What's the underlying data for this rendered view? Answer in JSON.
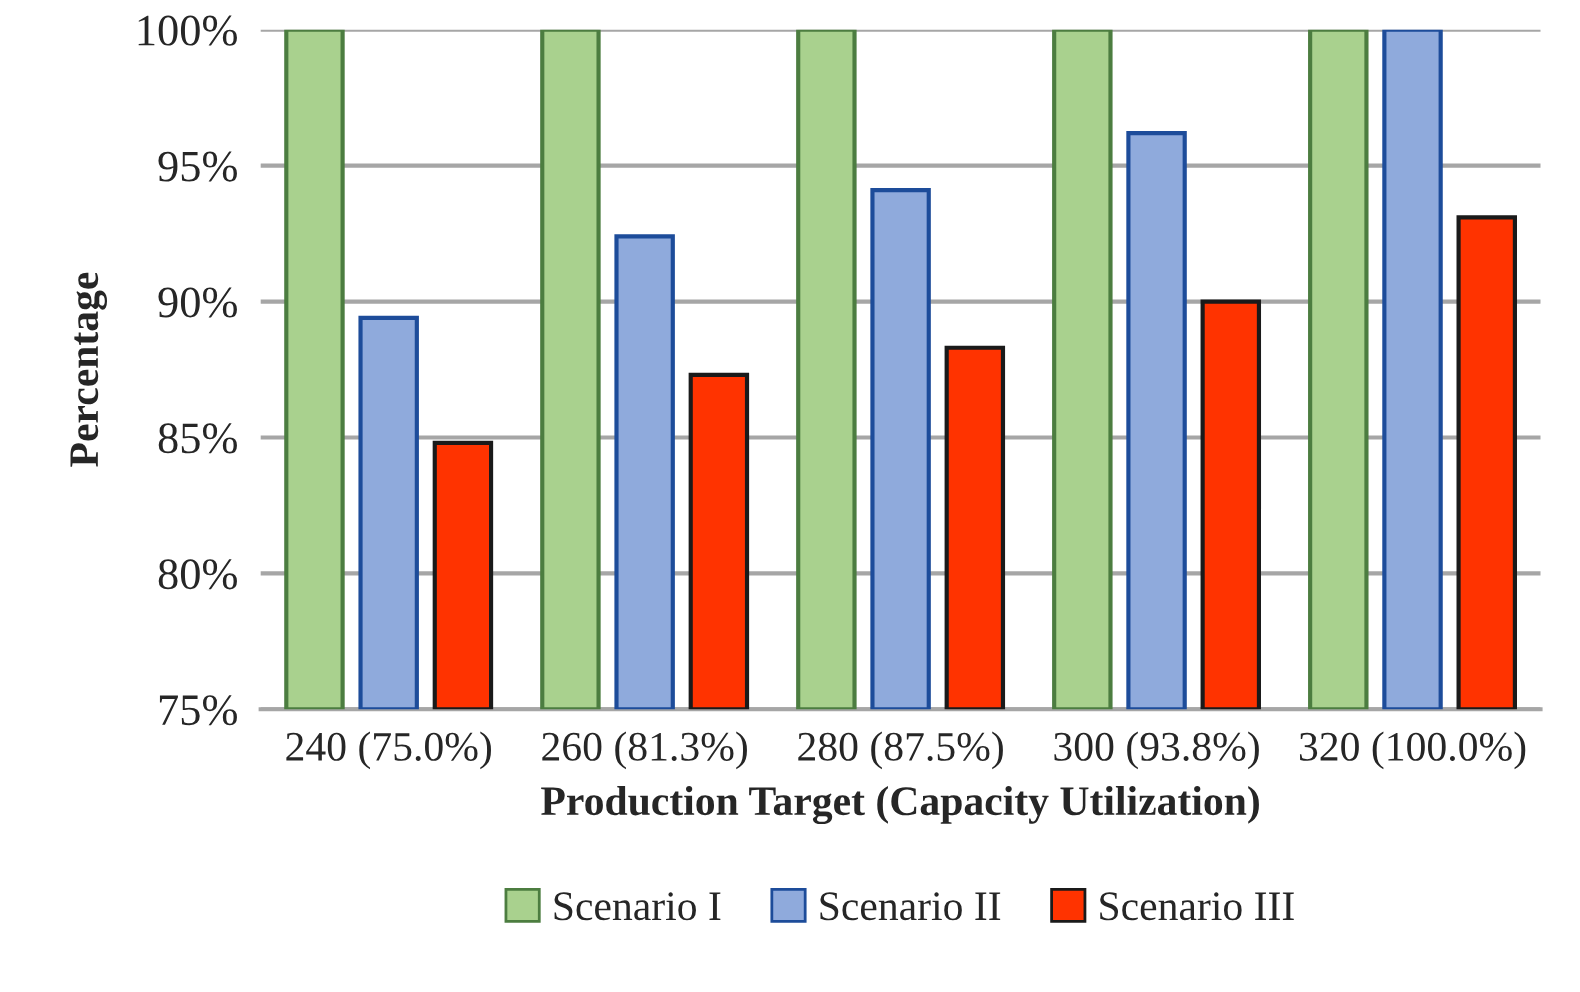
{
  "chart_data": {
    "type": "bar",
    "xlabel": "Production Target (Capacity Utilization)",
    "ylabel": "Percentage",
    "categories": [
      "240 (75.0%)",
      "260 (81.3%)",
      "280 (87.5%)",
      "300 (93.8%)",
      "320 (100.0%)"
    ],
    "series": [
      {
        "name": "Scenario I",
        "color": "#a9d18e",
        "values": [
          100,
          100,
          100,
          100,
          100
        ]
      },
      {
        "name": "Scenario II",
        "color": "#8faadc",
        "values": [
          89.4,
          92.4,
          94.1,
          96.2,
          100
        ]
      },
      {
        "name": "Scenario III",
        "color": "#ff3300",
        "values": [
          84.8,
          87.3,
          88.3,
          90.0,
          93.1
        ]
      }
    ],
    "ylim": [
      75,
      100
    ],
    "yticks": [
      {
        "value": 75,
        "label": "75%"
      },
      {
        "value": 80,
        "label": "80%"
      },
      {
        "value": 85,
        "label": "85%"
      },
      {
        "value": 90,
        "label": "90%"
      },
      {
        "value": 95,
        "label": "95%"
      },
      {
        "value": 100,
        "label": "100%"
      }
    ],
    "grid": "y",
    "legend": "bottom"
  }
}
